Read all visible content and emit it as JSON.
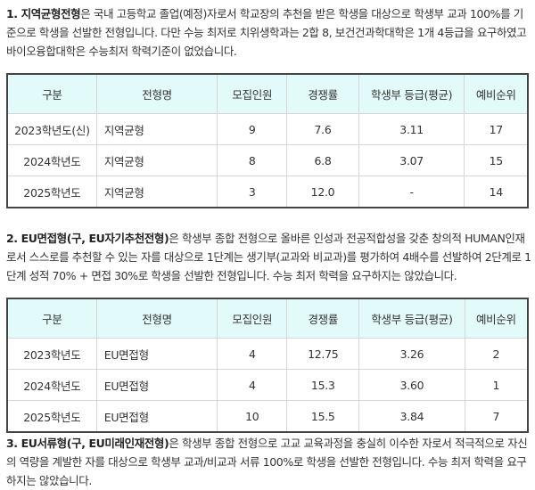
{
  "sections": [
    {
      "title": "1. 지역균형전형",
      "text": "은 국내 고등학교 졸업(예정)자로서 학교장의 추천을 받은 학생을 대상으로 학생부 교과 100%를 기준으로 학생을 선발한 전형입니다. 다만 수능 최저로 치위생학과는 2합 8, 보건건과학대학은 1개 4등급을 요구하였고 바이오융합대학은 수능최저 학력기준이 없었습니다."
    },
    {
      "title": "2. EU면접형(구, EU자기추천전형)",
      "text": "은 학생부 종합 전형으로 올바른 인성과 전공적합성을 갖춘 창의적 HUMAN인재로서 스스로를 추천할 수 있는 자를 대상으로 1단계는 생기부(교과와 비교과)를 평가하여 4배수를 선발하여 2단계로 1단계 성적 70% + 면접 30%로 학생을 선발한 전형입니다. 수능 최저 학력을 요구하지는 않았습니다."
    },
    {
      "title": "3. EU서류형(구, EU미래인재전형)",
      "text": "은 학생부 종합 전형으로 고교 교육과정을 충실히 이수한 자로서 적극적으로 자신의 역량을 계발한 자를 대상으로 학생부 교과/비교과 서류 100%로 학생을 선발한 전형입니다. 수능 최저 학력을 요구하지는 않았습니다."
    }
  ],
  "tables": [
    {
      "headers": [
        "구분",
        "전형명",
        "모집인원",
        "경쟁률",
        "학생부 등급(평균)",
        "예비순위"
      ],
      "rows": [
        [
          "2023학년도(신)",
          "지역균형",
          "9",
          "7.6",
          "3.11",
          "17"
        ],
        [
          "2024학년도",
          "지역균형",
          "8",
          "6.8",
          "3.07",
          "15"
        ],
        [
          "2025학년도",
          "지역균형",
          "3",
          "12.0",
          "-",
          "14"
        ]
      ]
    },
    {
      "headers": [
        "구분",
        "전형명",
        "모집인원",
        "경쟁률",
        "학생부 등급(평균)",
        "예비순위"
      ],
      "rows": [
        [
          "2023학년도",
          "EU면접형",
          "4",
          "12.75",
          "3.26",
          "2"
        ],
        [
          "2024학년도",
          "EU면접형",
          "4",
          "15.3",
          "3.60",
          "1"
        ],
        [
          "2025학년도",
          "EU면접형",
          "10",
          "15.5",
          "3.84",
          "7"
        ]
      ]
    }
  ],
  "colors": {
    "header_bg": "#e3fafa",
    "border": "#444444"
  }
}
